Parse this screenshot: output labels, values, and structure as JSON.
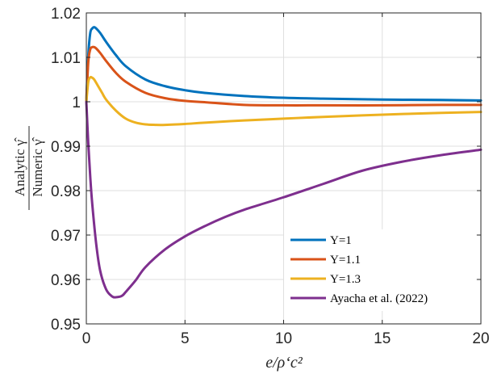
{
  "chart_data": {
    "type": "line",
    "title": "",
    "xlabel": "e/ρ‘c²",
    "ylabel_numerator": "Analytic γ̂",
    "ylabel_denominator": "Numeric γ̂",
    "xlim": [
      0,
      20
    ],
    "ylim": [
      0.95,
      1.02
    ],
    "xticks": [
      0,
      5,
      10,
      15,
      20
    ],
    "xtick_labels": [
      "0",
      "5",
      "10",
      "15",
      "20"
    ],
    "yticks": [
      0.95,
      0.96,
      0.97,
      0.98,
      0.99,
      1.0,
      1.01,
      1.02
    ],
    "ytick_labels": [
      "0.95",
      "0.96",
      "0.97",
      "0.98",
      "0.99",
      "1",
      "1.01",
      "1.02"
    ],
    "grid": true,
    "legend_position": "bottom-right",
    "series": [
      {
        "name": "Y=1",
        "color": "#0072BD",
        "x": [
          0,
          0.1,
          0.2,
          0.3,
          0.4,
          0.5,
          0.7,
          1,
          1.5,
          2,
          3,
          4,
          5,
          6,
          8,
          10,
          12,
          15,
          18,
          20
        ],
        "y": [
          1.0,
          1.0105,
          1.0155,
          1.0165,
          1.0168,
          1.0165,
          1.0155,
          1.0135,
          1.0105,
          1.008,
          1.005,
          1.0035,
          1.0026,
          1.002,
          1.0013,
          1.0009,
          1.0007,
          1.0005,
          1.0004,
          1.0003
        ]
      },
      {
        "name": "Y=1.1",
        "color": "#D95319",
        "x": [
          0,
          0.1,
          0.2,
          0.3,
          0.4,
          0.5,
          0.7,
          1,
          1.5,
          2,
          3,
          4,
          5,
          6,
          8,
          10,
          12,
          15,
          18,
          20
        ],
        "y": [
          1.0,
          1.009,
          1.0118,
          1.0123,
          1.0123,
          1.012,
          1.011,
          1.0092,
          1.0065,
          1.0045,
          1.002,
          1.0008,
          1.0002,
          0.9999,
          0.9993,
          0.9992,
          0.9992,
          0.9992,
          0.9993,
          0.9993
        ]
      },
      {
        "name": "Y=1.3",
        "color": "#EDB120",
        "x": [
          0,
          0.1,
          0.2,
          0.3,
          0.4,
          0.6,
          0.8,
          1,
          1.5,
          2,
          2.5,
          3,
          3.5,
          4,
          5,
          6,
          8,
          10,
          12,
          15,
          18,
          20
        ],
        "y": [
          1.0,
          1.0045,
          1.0055,
          1.0054,
          1.005,
          1.0035,
          1.002,
          1.0005,
          0.998,
          0.9962,
          0.9953,
          0.9949,
          0.9948,
          0.9948,
          0.995,
          0.9953,
          0.9958,
          0.9962,
          0.9966,
          0.9971,
          0.9975,
          0.9977
        ]
      },
      {
        "name": "Ayacha et al. (2022)",
        "color": "#7E2F8E",
        "x": [
          0,
          0.1,
          0.2,
          0.3,
          0.5,
          0.7,
          1,
          1.3,
          1.5,
          1.8,
          2,
          2.5,
          3,
          4,
          5,
          6,
          7,
          8,
          10,
          12,
          14,
          16,
          18,
          20
        ],
        "y": [
          1.0,
          0.9905,
          0.983,
          0.977,
          0.968,
          0.962,
          0.9578,
          0.9562,
          0.956,
          0.9563,
          0.9572,
          0.9598,
          0.9628,
          0.9668,
          0.9697,
          0.972,
          0.974,
          0.9757,
          0.9785,
          0.9815,
          0.9845,
          0.9865,
          0.988,
          0.9892
        ]
      }
    ]
  }
}
